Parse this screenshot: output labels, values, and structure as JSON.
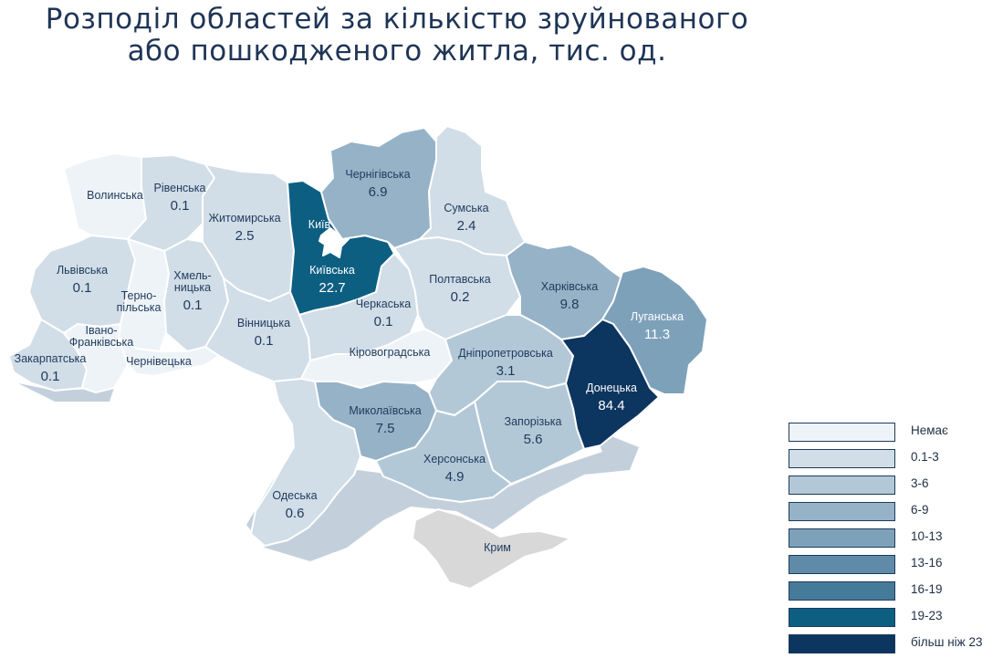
{
  "title": {
    "line1": "Розподіл областей за кількістю зруйнованого",
    "line2": "або пошкодженого житла, тис. од."
  },
  "colors": {
    "title": "#1f3556",
    "dark_label": "#1f3a5c",
    "light_label": "#ffffff",
    "border": "#ffffff",
    "shadow": "#b9c7d6"
  },
  "legend": [
    {
      "label": "Немає",
      "color": "#eef3f7"
    },
    {
      "label": "0.1-3",
      "color": "#d1dde7"
    },
    {
      "label": "3-6",
      "color": "#b3c8d7"
    },
    {
      "label": "6-9",
      "color": "#96b2c7"
    },
    {
      "label": "10-13",
      "color": "#7ea1ba"
    },
    {
      "label": "13-16",
      "color": "#5f8ba8"
    },
    {
      "label": "16-19",
      "color": "#467a99"
    },
    {
      "label": "19-23",
      "color": "#0d5f82"
    },
    {
      "label": "більш ніж 23",
      "color": "#0c3560"
    }
  ],
  "regions": [
    {
      "name": "Волинська",
      "value": null,
      "fill": "#eef3f7"
    },
    {
      "name": "Рівенська",
      "value": "0.1",
      "fill": "#d1dde7"
    },
    {
      "name": "Житомирська",
      "value": "2.5",
      "fill": "#d1dde7"
    },
    {
      "name": "Київ",
      "value": null,
      "fill": "#ffffff"
    },
    {
      "name": "Київська",
      "value": "22.7",
      "fill": "#0d5f82"
    },
    {
      "name": "Чернігівська",
      "value": "6.9",
      "fill": "#96b2c7"
    },
    {
      "name": "Сумська",
      "value": "2.4",
      "fill": "#d1dde7"
    },
    {
      "name": "Львівська",
      "value": "0.1",
      "fill": "#d1dde7"
    },
    {
      "name": "Терно-пільська",
      "value": null,
      "fill": "#eef3f7"
    },
    {
      "name": "Хмель-ницька",
      "value": "0.1",
      "fill": "#d1dde7"
    },
    {
      "name": "Вінницька",
      "value": "0.1",
      "fill": "#d1dde7"
    },
    {
      "name": "Черкаська",
      "value": "0.1",
      "fill": "#d1dde7"
    },
    {
      "name": "Полтавська",
      "value": "0.2",
      "fill": "#d1dde7"
    },
    {
      "name": "Харківська",
      "value": "9.8",
      "fill": "#96b2c7"
    },
    {
      "name": "Луганська",
      "value": "11.3",
      "fill": "#7ea1ba"
    },
    {
      "name": "Закарпатська",
      "value": "0.1",
      "fill": "#d1dde7"
    },
    {
      "name": "Івано-Франківська",
      "value": null,
      "fill": "#eef3f7"
    },
    {
      "name": "Чернівецька",
      "value": null,
      "fill": "#eef3f7"
    },
    {
      "name": "Кіровоградська",
      "value": null,
      "fill": "#eef3f7"
    },
    {
      "name": "Дніпропетровська",
      "value": "3.1",
      "fill": "#b3c8d7"
    },
    {
      "name": "Донецька",
      "value": "84.4",
      "fill": "#0c3560"
    },
    {
      "name": "Миколаївська",
      "value": "7.5",
      "fill": "#96b2c7"
    },
    {
      "name": "Запорізька",
      "value": "5.6",
      "fill": "#b3c8d7"
    },
    {
      "name": "Херсонська",
      "value": "4.9",
      "fill": "#b3c8d7"
    },
    {
      "name": "Одеська",
      "value": "0.6",
      "fill": "#d1dde7"
    },
    {
      "name": "Крим",
      "value": null,
      "fill": "#d8d8d8"
    }
  ]
}
